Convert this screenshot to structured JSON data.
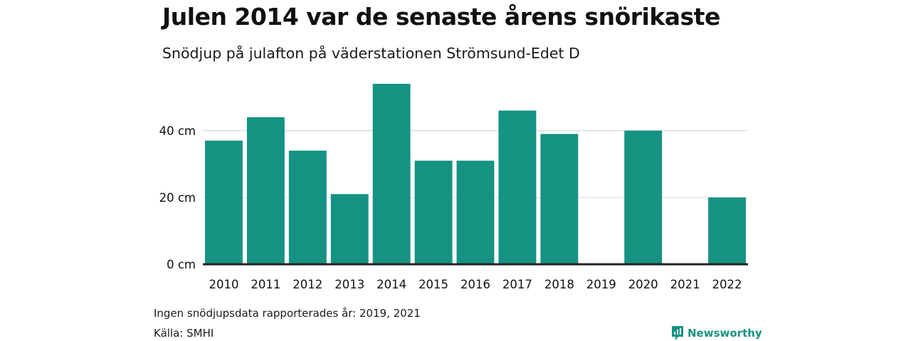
{
  "chart_data": {
    "type": "bar",
    "title": "Julen 2014 var de senaste årens snörikaste",
    "subtitle": "Snödjup på julafton på väderstationen Strömsund-Edet D",
    "categories": [
      "2010",
      "2011",
      "2012",
      "2013",
      "2014",
      "2015",
      "2016",
      "2017",
      "2018",
      "2019",
      "2020",
      "2021",
      "2022"
    ],
    "series": [
      {
        "values": [
          37,
          44,
          34,
          21,
          54,
          31,
          31,
          46,
          39,
          null,
          40,
          null,
          20
        ]
      }
    ],
    "y_ticks": [
      0,
      20,
      40
    ],
    "y_tick_labels": [
      "0 cm",
      "20 cm",
      "40 cm"
    ],
    "ylim": [
      0,
      54
    ],
    "grid": true,
    "bar_color": "#169283"
  },
  "footer": {
    "note": "Ingen snödjupsdata rapporterades år: 2019, 2021",
    "source": "Källa: SMHI",
    "brand": "Newsworthy"
  }
}
